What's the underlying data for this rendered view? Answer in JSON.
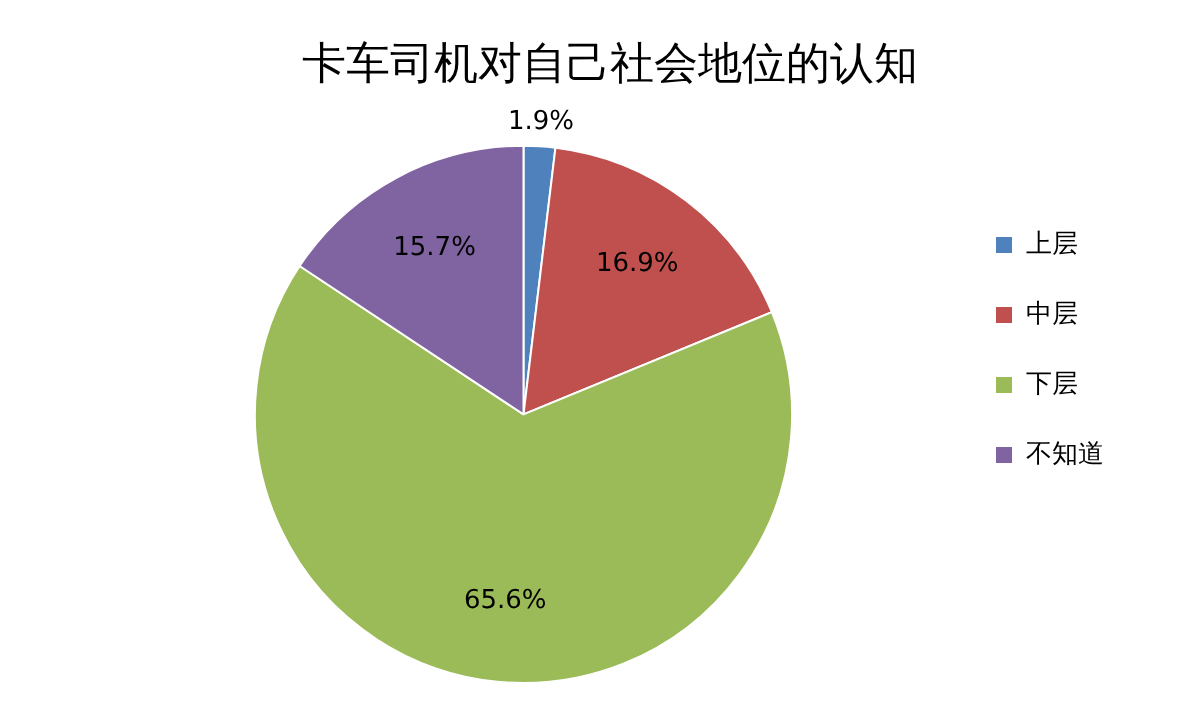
{
  "chart_data": {
    "type": "pie",
    "title": "卡车司机对自己社会地位的认知",
    "categories": [
      "上层",
      "中层",
      "下层",
      "不知道"
    ],
    "values": [
      1.9,
      16.9,
      65.6,
      15.7
    ],
    "colors": [
      "#4f81bd",
      "#c0504d",
      "#9bbb59",
      "#8064a2"
    ],
    "value_labels": [
      "1.9%",
      "16.9%",
      "65.6%",
      "15.7%"
    ],
    "legend": "right"
  }
}
